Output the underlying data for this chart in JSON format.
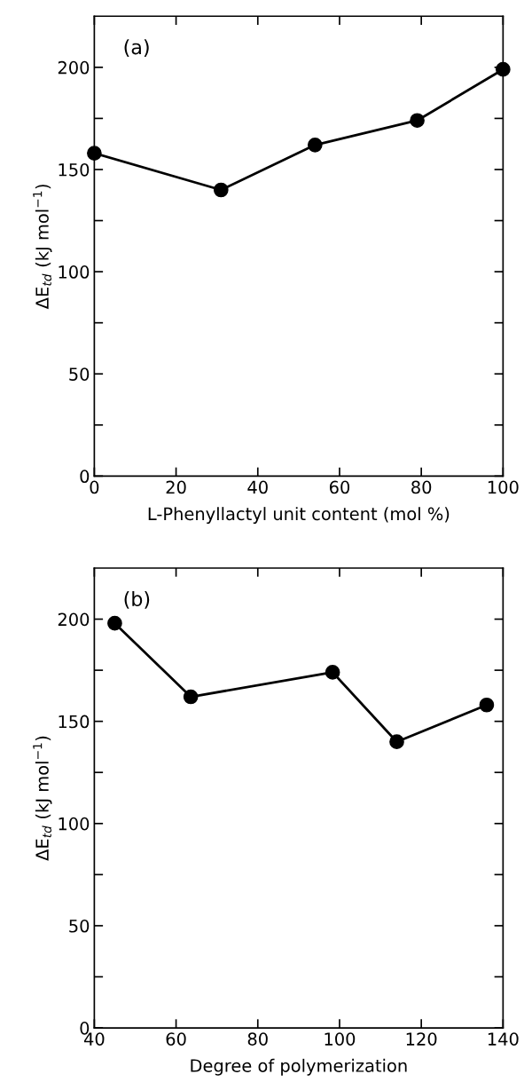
{
  "chart_data": [
    {
      "type": "line",
      "xlabel": "L-Phenyllactyl unit content (mol %)",
      "ylabel": "ΔE$_{td}$ (kJ mol$^{−1}$)",
      "annotations": [
        "(a)"
      ],
      "x": [
        0,
        31,
        54,
        79,
        100
      ],
      "series": [
        {
          "color": "#000000",
          "values": [
            158,
            140,
            162,
            174,
            199
          ]
        }
      ],
      "marker": "circle",
      "line_style": "solid",
      "grid": false,
      "legend": false,
      "xlim": [
        0,
        100
      ],
      "xticks": [
        0,
        20,
        40,
        60,
        80,
        100
      ],
      "ylim": [
        0,
        225
      ],
      "yticks": [
        0,
        {
          "value": 25,
          "label": null
        },
        50,
        {
          "value": 75,
          "label": null
        },
        100,
        {
          "value": 125,
          "label": null
        },
        150,
        {
          "value": 175,
          "label": null
        },
        200
      ]
    },
    {
      "type": "line",
      "xlabel": "Degree of polymerization",
      "ylabel": "ΔE$_{td}$ (kJ mol$^{−1}$)",
      "annotations": [
        "(b)"
      ],
      "x": [
        45,
        63.6,
        98.3,
        114,
        136
      ],
      "series": [
        {
          "color": "#000000",
          "values": [
            198,
            162,
            174,
            140,
            158
          ]
        }
      ],
      "marker": "circle",
      "line_style": "solid",
      "grid": false,
      "legend": false,
      "xlim": [
        40,
        140
      ],
      "xticks": [
        40,
        60,
        80,
        100,
        120,
        140
      ],
      "ylim": [
        0,
        225
      ],
      "yticks": [
        0,
        {
          "value": 25,
          "label": null
        },
        50,
        {
          "value": 75,
          "label": null
        },
        100,
        {
          "value": 125,
          "label": null
        },
        150,
        {
          "value": 175,
          "label": null
        },
        200
      ]
    }
  ]
}
